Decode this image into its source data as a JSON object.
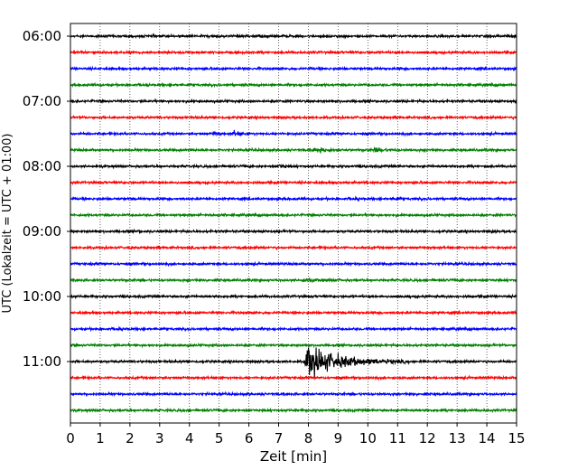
{
  "chart_data": {
    "type": "line",
    "xlabel": "Zeit  [min]",
    "ylabel": "UTC (Lokalzeit = UTC + 01:00)",
    "xlim": [
      0,
      15
    ],
    "x_ticks": [
      0,
      1,
      2,
      3,
      4,
      5,
      6,
      7,
      8,
      9,
      10,
      11,
      12,
      13,
      14,
      15
    ],
    "x_tick_labels": [
      "0",
      "1",
      "2",
      "3",
      "4",
      "5",
      "6",
      "7",
      "8",
      "9",
      "10",
      "11",
      "12",
      "13",
      "14",
      "15"
    ],
    "y_tick_labels": [
      "06:00",
      "07:00",
      "08:00",
      "09:00",
      "10:00",
      "11:00"
    ],
    "grid": "vertical dotted",
    "trace_interval_min": 15,
    "trace_colors": [
      "#000000",
      "#ff0000",
      "#0000ff",
      "#008000"
    ],
    "traces": [
      {
        "start": "06:00",
        "color": "#000000",
        "events": []
      },
      {
        "start": "06:15",
        "color": "#ff0000",
        "events": []
      },
      {
        "start": "06:30",
        "color": "#0000ff",
        "events": []
      },
      {
        "start": "06:45",
        "color": "#008000",
        "events": []
      },
      {
        "start": "07:00",
        "color": "#000000",
        "events": []
      },
      {
        "start": "07:15",
        "color": "#ff0000",
        "events": []
      },
      {
        "start": "07:30",
        "color": "#0000ff",
        "events": [
          {
            "t": 4.8,
            "amp": 0.35,
            "dur": 0.2
          },
          {
            "t": 5.45,
            "amp": 0.4,
            "dur": 0.3
          }
        ]
      },
      {
        "start": "07:45",
        "color": "#008000",
        "events": [
          {
            "t": 8.2,
            "amp": 0.25,
            "dur": 0.6
          },
          {
            "t": 10.2,
            "amp": 0.3,
            "dur": 0.5
          }
        ]
      },
      {
        "start": "08:00",
        "color": "#000000",
        "events": [
          {
            "t": 7.0,
            "amp": 0.15,
            "dur": 0.3
          }
        ]
      },
      {
        "start": "08:15",
        "color": "#ff0000",
        "events": []
      },
      {
        "start": "08:30",
        "color": "#0000ff",
        "events": [
          {
            "t": 9.5,
            "amp": 0.12,
            "dur": 0.3
          },
          {
            "t": 10.8,
            "amp": 0.15,
            "dur": 0.3
          }
        ]
      },
      {
        "start": "08:45",
        "color": "#008000",
        "events": []
      },
      {
        "start": "09:00",
        "color": "#000000",
        "events": [
          {
            "t": 2.3,
            "amp": 0.15,
            "dur": 0.1
          },
          {
            "t": 14.2,
            "amp": 0.15,
            "dur": 0.1
          }
        ]
      },
      {
        "start": "09:15",
        "color": "#ff0000",
        "events": []
      },
      {
        "start": "09:30",
        "color": "#0000ff",
        "events": []
      },
      {
        "start": "09:45",
        "color": "#008000",
        "events": [
          {
            "t": 7.8,
            "amp": 0.15,
            "dur": 0.8
          }
        ]
      },
      {
        "start": "10:00",
        "color": "#000000",
        "events": []
      },
      {
        "start": "10:15",
        "color": "#ff0000",
        "events": []
      },
      {
        "start": "10:30",
        "color": "#0000ff",
        "events": [
          {
            "t": 1.6,
            "amp": 0.15,
            "dur": 0.2
          }
        ]
      },
      {
        "start": "10:45",
        "color": "#008000",
        "events": []
      },
      {
        "start": "11:00",
        "color": "#000000",
        "events": [
          {
            "t": 7.9,
            "amp": 1.4,
            "dur": 2.2
          }
        ]
      },
      {
        "start": "11:15",
        "color": "#ff0000",
        "events": []
      },
      {
        "start": "11:30",
        "color": "#0000ff",
        "events": []
      },
      {
        "start": "11:45",
        "color": "#008000",
        "events": []
      }
    ]
  }
}
